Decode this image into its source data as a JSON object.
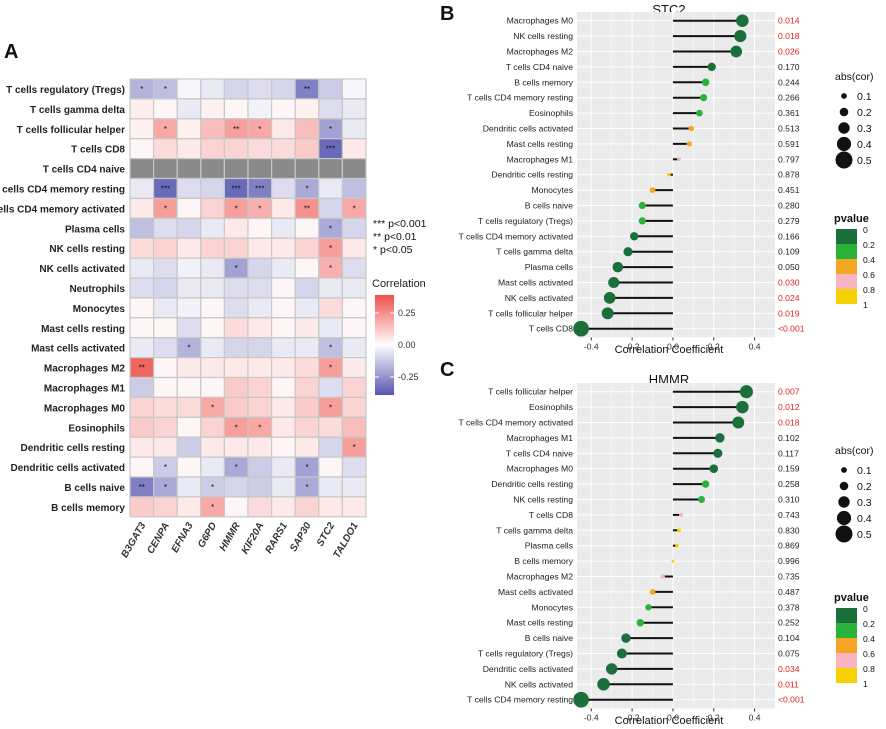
{
  "chart_data": [
    {
      "panel": "A",
      "type": "heatmap",
      "rows": [
        "T cells regulatory (Tregs)",
        "T cells gamma delta",
        "T cells follicular helper",
        "T cells CD8",
        "T cells CD4 naive",
        "T cells CD4 memory resting",
        "T cells CD4 memory activated",
        "Plasma cells",
        "NK cells resting",
        "NK cells activated",
        "Neutrophils",
        "Monocytes",
        "Mast cells resting",
        "Mast cells activated",
        "Macrophages M2",
        "Macrophages M1",
        "Macrophages M0",
        "Eosinophils",
        "Dendritic cells resting",
        "Dendritic cells activated",
        "B cells naive",
        "B cells memory"
      ],
      "cols": [
        "B3GAT3",
        "CENPA",
        "EFNA3",
        "G6PD",
        "HMMR",
        "KIF20A",
        "RARS1",
        "SAP30",
        "STC2",
        "TALDO1"
      ],
      "values": [
        [
          -0.18,
          -0.15,
          -0.02,
          -0.05,
          -0.1,
          -0.08,
          -0.1,
          -0.3,
          -0.12,
          -0.02
        ],
        [
          0.04,
          0.02,
          -0.05,
          0.03,
          0.02,
          -0.03,
          0.02,
          0.03,
          -0.08,
          -0.05
        ],
        [
          0.03,
          0.2,
          0.03,
          0.15,
          0.22,
          0.2,
          0.05,
          0.15,
          -0.22,
          -0.05
        ],
        [
          0.02,
          0.08,
          0.05,
          0.1,
          0.1,
          0.08,
          0.08,
          0.12,
          -0.35,
          0.05
        ],
        [
          null,
          null,
          null,
          null,
          null,
          null,
          null,
          null,
          null,
          null
        ],
        [
          -0.05,
          -0.35,
          -0.08,
          -0.1,
          -0.35,
          -0.3,
          -0.08,
          -0.2,
          -0.05,
          -0.15
        ],
        [
          0.05,
          0.22,
          0.02,
          0.1,
          0.22,
          0.18,
          0.05,
          0.25,
          -0.1,
          0.2
        ],
        [
          -0.15,
          -0.08,
          -0.1,
          -0.05,
          0.05,
          0.02,
          -0.05,
          0.02,
          -0.2,
          -0.1
        ],
        [
          0.08,
          0.1,
          0.05,
          0.1,
          0.1,
          0.05,
          0.05,
          0.1,
          0.22,
          0.05
        ],
        [
          -0.05,
          -0.08,
          -0.03,
          -0.05,
          -0.22,
          -0.1,
          -0.05,
          0.02,
          0.18,
          -0.08
        ],
        [
          -0.08,
          -0.1,
          -0.05,
          -0.05,
          -0.08,
          -0.08,
          0.02,
          -0.1,
          -0.05,
          -0.05
        ],
        [
          0.02,
          -0.05,
          -0.03,
          0.02,
          -0.08,
          -0.05,
          0.02,
          -0.05,
          0.08,
          0.02
        ],
        [
          0.02,
          0.02,
          -0.08,
          0.02,
          0.08,
          0.05,
          0.02,
          0.05,
          -0.05,
          0.02
        ],
        [
          -0.05,
          -0.08,
          -0.18,
          -0.05,
          -0.1,
          -0.1,
          -0.05,
          -0.05,
          -0.15,
          -0.05
        ],
        [
          0.35,
          0.02,
          0.05,
          0.05,
          0.05,
          0.05,
          0.05,
          0.08,
          0.22,
          0.05
        ],
        [
          -0.12,
          0.02,
          0.02,
          0.02,
          0.12,
          0.1,
          0.02,
          0.1,
          -0.08,
          0.1
        ],
        [
          0.1,
          0.08,
          0.08,
          0.2,
          0.12,
          0.1,
          0.05,
          0.12,
          0.22,
          0.1
        ],
        [
          0.12,
          0.1,
          0.02,
          0.1,
          0.22,
          0.2,
          0.05,
          0.1,
          0.08,
          0.15
        ],
        [
          0.05,
          0.05,
          -0.12,
          0.05,
          0.05,
          0.05,
          0.02,
          0.05,
          -0.1,
          0.22
        ],
        [
          0.02,
          -0.12,
          0.02,
          -0.05,
          -0.2,
          -0.12,
          -0.05,
          -0.22,
          0.02,
          -0.08
        ],
        [
          -0.3,
          -0.2,
          -0.05,
          -0.12,
          -0.1,
          -0.12,
          -0.05,
          -0.2,
          -0.05,
          -0.05
        ],
        [
          0.12,
          0.1,
          0.05,
          0.2,
          0.02,
          0.08,
          0.05,
          0.1,
          0.05,
          0.05
        ]
      ],
      "stars": [
        [
          "*",
          "*",
          "",
          "",
          "",
          "",
          "",
          "**",
          "",
          ""
        ],
        [
          "",
          "",
          "",
          "",
          "",
          "",
          "",
          "",
          "",
          ""
        ],
        [
          "",
          "*",
          "",
          "",
          "**",
          "*",
          "",
          "",
          "*",
          ""
        ],
        [
          "",
          "",
          "",
          "",
          "",
          "",
          "",
          "",
          "***",
          ""
        ],
        [
          "",
          "",
          "",
          "",
          "",
          "",
          "",
          "",
          "",
          ""
        ],
        [
          "",
          "***",
          "",
          "",
          "***",
          "***",
          "",
          "*",
          "",
          ""
        ],
        [
          "",
          "*",
          "",
          "",
          "*",
          "*",
          "",
          "**",
          "",
          "*"
        ],
        [
          "",
          "",
          "",
          "",
          "",
          "",
          "",
          "",
          "*",
          ""
        ],
        [
          "",
          "",
          "",
          "",
          "",
          "",
          "",
          "",
          "*",
          ""
        ],
        [
          "",
          "",
          "",
          "",
          "*",
          "",
          "",
          "",
          "*",
          ""
        ],
        [
          "",
          "",
          "",
          "",
          "",
          "",
          "",
          "",
          "",
          ""
        ],
        [
          "",
          "",
          "",
          "",
          "",
          "",
          "",
          "",
          "",
          ""
        ],
        [
          "",
          "",
          "",
          "",
          "",
          "",
          "",
          "",
          "",
          ""
        ],
        [
          "",
          "",
          "*",
          "",
          "",
          "",
          "",
          "",
          "*",
          ""
        ],
        [
          "**",
          "",
          "",
          "",
          "",
          "",
          "",
          "",
          "*",
          ""
        ],
        [
          "",
          "",
          "",
          "",
          "",
          "",
          "",
          "",
          "",
          ""
        ],
        [
          "",
          "",
          "",
          "*",
          "",
          "",
          "",
          "",
          "*",
          ""
        ],
        [
          "",
          "",
          "",
          "",
          "*",
          "*",
          "",
          "",
          "",
          ""
        ],
        [
          "",
          "",
          "",
          "",
          "",
          "",
          "",
          "",
          "",
          "*"
        ],
        [
          "",
          "*",
          "",
          "",
          "*",
          "",
          "",
          "*",
          "",
          ""
        ],
        [
          "**",
          "*",
          "",
          "*",
          "",
          "",
          "",
          "*",
          "",
          ""
        ],
        [
          "",
          "",
          "",
          "*",
          "",
          "",
          "",
          "",
          "",
          ""
        ]
      ],
      "legend_title": "Correlation",
      "legend_ticks": [
        "0.25",
        "0.00",
        "-0.25"
      ],
      "sig_legend": [
        "***  p<0.001",
        "**  p<0.01",
        "*  p<0.05"
      ]
    },
    {
      "panel": "B",
      "type": "scatter",
      "title": "STC2",
      "xlabel": "Correlation Coefficient",
      "xticks": [
        "-0.4",
        "-0.2",
        "0.0",
        "0.2",
        "0.4"
      ],
      "xlim": [
        -0.47,
        0.5
      ],
      "items": [
        {
          "label": "Macrophages M0",
          "r": 0.34,
          "p": "0.014",
          "pv": 0.014
        },
        {
          "label": "NK cells resting",
          "r": 0.33,
          "p": "0.018",
          "pv": 0.018
        },
        {
          "label": "Macrophages M2",
          "r": 0.31,
          "p": "0.026",
          "pv": 0.026
        },
        {
          "label": "T cells CD4 naive",
          "r": 0.19,
          "p": "0.170",
          "pv": 0.17
        },
        {
          "label": "B cells memory",
          "r": 0.16,
          "p": "0.244",
          "pv": 0.244
        },
        {
          "label": "T cells CD4 memory resting",
          "r": 0.15,
          "p": "0.266",
          "pv": 0.266
        },
        {
          "label": "Eosinophils",
          "r": 0.13,
          "p": "0.361",
          "pv": 0.361
        },
        {
          "label": "Dendritic cells activated",
          "r": 0.09,
          "p": "0.513",
          "pv": 0.513
        },
        {
          "label": "Mast cells resting",
          "r": 0.08,
          "p": "0.591",
          "pv": 0.591
        },
        {
          "label": "Macrophages M1",
          "r": 0.03,
          "p": "0.797",
          "pv": 0.797
        },
        {
          "label": "Dendritic cells resting",
          "r": -0.02,
          "p": "0.878",
          "pv": 0.878
        },
        {
          "label": "Monocytes",
          "r": -0.1,
          "p": "0.451",
          "pv": 0.451
        },
        {
          "label": "B cells naive",
          "r": -0.15,
          "p": "0.280",
          "pv": 0.28
        },
        {
          "label": "T cells regulatory (Tregs)",
          "r": -0.15,
          "p": "0.279",
          "pv": 0.279
        },
        {
          "label": "T cells CD4 memory activated",
          "r": -0.19,
          "p": "0.166",
          "pv": 0.166
        },
        {
          "label": "T cells gamma delta",
          "r": -0.22,
          "p": "0.109",
          "pv": 0.109
        },
        {
          "label": "Plasma cells",
          "r": -0.27,
          "p": "0.050",
          "pv": 0.05
        },
        {
          "label": "Mast cells activated",
          "r": -0.29,
          "p": "0.030",
          "pv": 0.03
        },
        {
          "label": "NK cells activated",
          "r": -0.31,
          "p": "0.024",
          "pv": 0.024
        },
        {
          "label": "T cells follicular helper",
          "r": -0.32,
          "p": "0.019",
          "pv": 0.019
        },
        {
          "label": "T cells CD8",
          "r": -0.45,
          "p": "<0.001",
          "pv": 0.0005
        }
      ]
    },
    {
      "panel": "C",
      "type": "scatter",
      "title": "HMMR",
      "xlabel": "Correlation Coefficient",
      "xticks": [
        "-0.4",
        "-0.2",
        "0.0",
        "0.2",
        "0.4"
      ],
      "xlim": [
        -0.47,
        0.5
      ],
      "items": [
        {
          "label": "T cells follicular helper",
          "r": 0.36,
          "p": "0.007",
          "pv": 0.007
        },
        {
          "label": "Eosinophils",
          "r": 0.34,
          "p": "0.012",
          "pv": 0.012
        },
        {
          "label": "T cells CD4 memory activated",
          "r": 0.32,
          "p": "0.018",
          "pv": 0.018
        },
        {
          "label": "Macrophages M1",
          "r": 0.23,
          "p": "0.102",
          "pv": 0.102
        },
        {
          "label": "T cells CD4 naive",
          "r": 0.22,
          "p": "0.117",
          "pv": 0.117
        },
        {
          "label": "Macrophages M0",
          "r": 0.2,
          "p": "0.159",
          "pv": 0.159
        },
        {
          "label": "Dendritic cells resting",
          "r": 0.16,
          "p": "0.258",
          "pv": 0.258
        },
        {
          "label": "NK cells resting",
          "r": 0.14,
          "p": "0.310",
          "pv": 0.31
        },
        {
          "label": "T cells CD8",
          "r": 0.04,
          "p": "0.743",
          "pv": 0.743
        },
        {
          "label": "T cells gamma delta",
          "r": 0.03,
          "p": "0.830",
          "pv": 0.83
        },
        {
          "label": "Plasma cells",
          "r": 0.02,
          "p": "0.869",
          "pv": 0.869
        },
        {
          "label": "B cells memory",
          "r": 0.0,
          "p": "0.996",
          "pv": 0.996
        },
        {
          "label": "Macrophages M2",
          "r": -0.05,
          "p": "0.735",
          "pv": 0.735
        },
        {
          "label": "Mast cells activated",
          "r": -0.1,
          "p": "0.487",
          "pv": 0.487
        },
        {
          "label": "Monocytes",
          "r": -0.12,
          "p": "0.378",
          "pv": 0.378
        },
        {
          "label": "Mast cells resting",
          "r": -0.16,
          "p": "0.252",
          "pv": 0.252
        },
        {
          "label": "B cells naive",
          "r": -0.23,
          "p": "0.104",
          "pv": 0.104
        },
        {
          "label": "T cells regulatory (Tregs)",
          "r": -0.25,
          "p": "0.075",
          "pv": 0.075
        },
        {
          "label": "Dendritic cells activated",
          "r": -0.3,
          "p": "0.034",
          "pv": 0.034
        },
        {
          "label": "NK cells activated",
          "r": -0.34,
          "p": "0.011",
          "pv": 0.011
        },
        {
          "label": "T cells CD4 memory resting",
          "r": -0.45,
          "p": "<0.001",
          "pv": 0.0005
        }
      ]
    }
  ],
  "size_legend": {
    "title": "abs(cor)",
    "labels": [
      "0.1",
      "0.2",
      "0.3",
      "0.4",
      "0.5"
    ]
  },
  "pvalue_legend": {
    "title": "pvalue",
    "labels": [
      "0",
      "0.2",
      "0.4",
      "0.6",
      "0.8",
      "1"
    ]
  },
  "colors": {
    "p_scale": [
      "#1b6f3a",
      "#2ab33a",
      "#f5a623",
      "#f8b4c0",
      "#f8d200"
    ],
    "heat_low": "#5555b0",
    "heat_mid": "#ffffff",
    "heat_high": "#f0504a",
    "na": "#8a8a8a",
    "sig_red": "#e02020"
  }
}
